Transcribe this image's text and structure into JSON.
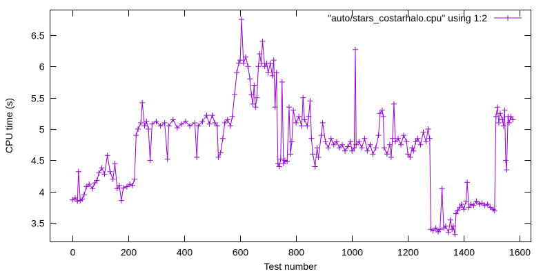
{
  "chart_data": {
    "type": "line",
    "title": "",
    "xlabel": "Test number",
    "ylabel": "CPU time (s)",
    "xlim": [
      -80,
      1640
    ],
    "ylim": [
      3.2,
      6.9
    ],
    "xticks": [
      0,
      200,
      400,
      600,
      800,
      1000,
      1200,
      1400,
      1600
    ],
    "yticks": [
      3.5,
      4,
      4.5,
      5,
      5.5,
      6,
      6.5
    ],
    "ytick_labels": [
      "3.5",
      "4",
      "4.5",
      "5",
      "5.5",
      "6",
      "6.5"
    ],
    "grid": false,
    "legend": "top-right",
    "marker": "plus",
    "series": [
      {
        "name": "\"auto/stars_costarhalo.cpu\" using 1:2",
        "color": "#9400d3",
        "points": [
          [
            0,
            3.87
          ],
          [
            10,
            3.9
          ],
          [
            18,
            3.85
          ],
          [
            22,
            4.32
          ],
          [
            28,
            3.86
          ],
          [
            35,
            3.88
          ],
          [
            42,
            3.95
          ],
          [
            50,
            4.08
          ],
          [
            60,
            4.12
          ],
          [
            72,
            4.05
          ],
          [
            80,
            4.14
          ],
          [
            88,
            4.18
          ],
          [
            95,
            4.3
          ],
          [
            105,
            4.38
          ],
          [
            115,
            4.28
          ],
          [
            125,
            4.58
          ],
          [
            135,
            4.32
          ],
          [
            145,
            4.2
          ],
          [
            152,
            4.45
          ],
          [
            160,
            4.05
          ],
          [
            168,
            4.1
          ],
          [
            175,
            3.86
          ],
          [
            182,
            4.06
          ],
          [
            195,
            4.08
          ],
          [
            205,
            4.12
          ],
          [
            215,
            4.1
          ],
          [
            222,
            4.2
          ],
          [
            228,
            4.9
          ],
          [
            235,
            5.0
          ],
          [
            245,
            5.1
          ],
          [
            250,
            5.42
          ],
          [
            258,
            5.05
          ],
          [
            265,
            5.12
          ],
          [
            272,
            5.0
          ],
          [
            278,
            4.5
          ],
          [
            285,
            5.08
          ],
          [
            300,
            5.12
          ],
          [
            315,
            5.05
          ],
          [
            330,
            5.1
          ],
          [
            340,
            4.52
          ],
          [
            345,
            5.05
          ],
          [
            360,
            5.15
          ],
          [
            375,
            5.02
          ],
          [
            390,
            5.08
          ],
          [
            405,
            5.12
          ],
          [
            420,
            5.05
          ],
          [
            438,
            5.1
          ],
          [
            445,
            4.55
          ],
          [
            450,
            5.05
          ],
          [
            465,
            5.12
          ],
          [
            480,
            5.22
          ],
          [
            490,
            5.08
          ],
          [
            500,
            5.22
          ],
          [
            510,
            5.1
          ],
          [
            518,
            5.05
          ],
          [
            522,
            4.55
          ],
          [
            530,
            4.62
          ],
          [
            538,
            4.85
          ],
          [
            545,
            5.1
          ],
          [
            555,
            5.15
          ],
          [
            565,
            5.05
          ],
          [
            572,
            5.2
          ],
          [
            580,
            5.55
          ],
          [
            588,
            5.9
          ],
          [
            595,
            6.05
          ],
          [
            600,
            6.1
          ],
          [
            605,
            6.75
          ],
          [
            612,
            6.05
          ],
          [
            620,
            6.15
          ],
          [
            628,
            6.0
          ],
          [
            635,
            5.8
          ],
          [
            640,
            5.55
          ],
          [
            645,
            5.4
          ],
          [
            650,
            5.7
          ],
          [
            655,
            5.35
          ],
          [
            660,
            5.5
          ],
          [
            665,
            6.0
          ],
          [
            670,
            6.2
          ],
          [
            675,
            6.05
          ],
          [
            680,
            6.4
          ],
          [
            688,
            6.0
          ],
          [
            695,
            6.05
          ],
          [
            700,
            5.9
          ],
          [
            708,
            6.05
          ],
          [
            715,
            5.85
          ],
          [
            720,
            6.1
          ],
          [
            725,
            5.35
          ],
          [
            730,
            5.9
          ],
          [
            735,
            4.45
          ],
          [
            740,
            4.4
          ],
          [
            745,
            4.52
          ],
          [
            750,
            5.75
          ],
          [
            755,
            4.45
          ],
          [
            760,
            4.5
          ],
          [
            768,
            4.48
          ],
          [
            775,
            5.35
          ],
          [
            780,
            4.6
          ],
          [
            785,
            4.8
          ],
          [
            790,
            5.3
          ],
          [
            800,
            5.1
          ],
          [
            810,
            5.2
          ],
          [
            820,
            5.05
          ],
          [
            825,
            5.5
          ],
          [
            830,
            5.15
          ],
          [
            840,
            5.05
          ],
          [
            845,
            5.2
          ],
          [
            850,
            5.45
          ],
          [
            855,
            4.85
          ],
          [
            860,
            4.6
          ],
          [
            868,
            4.4
          ],
          [
            875,
            4.7
          ],
          [
            880,
            4.55
          ],
          [
            890,
            4.9
          ],
          [
            895,
            5.1
          ],
          [
            905,
            4.8
          ],
          [
            915,
            4.7
          ],
          [
            925,
            4.85
          ],
          [
            935,
            4.75
          ],
          [
            945,
            4.8
          ],
          [
            955,
            4.7
          ],
          [
            965,
            4.75
          ],
          [
            975,
            4.65
          ],
          [
            985,
            4.72
          ],
          [
            995,
            4.8
          ],
          [
            1000,
            4.65
          ],
          [
            1008,
            4.7
          ],
          [
            1012,
            6.27
          ],
          [
            1015,
            4.75
          ],
          [
            1025,
            4.8
          ],
          [
            1035,
            4.7
          ],
          [
            1045,
            4.85
          ],
          [
            1055,
            4.65
          ],
          [
            1065,
            4.75
          ],
          [
            1075,
            4.6
          ],
          [
            1085,
            4.7
          ],
          [
            1095,
            4.9
          ],
          [
            1100,
            5.25
          ],
          [
            1108,
            5.3
          ],
          [
            1112,
            5.2
          ],
          [
            1115,
            4.7
          ],
          [
            1125,
            4.6
          ],
          [
            1135,
            4.75
          ],
          [
            1140,
            4.55
          ],
          [
            1145,
            4.85
          ],
          [
            1150,
            5.4
          ],
          [
            1155,
            4.8
          ],
          [
            1165,
            4.85
          ],
          [
            1175,
            4.75
          ],
          [
            1185,
            4.9
          ],
          [
            1195,
            4.8
          ],
          [
            1200,
            4.6
          ],
          [
            1208,
            4.55
          ],
          [
            1215,
            4.7
          ],
          [
            1220,
            4.65
          ],
          [
            1228,
            4.8
          ],
          [
            1235,
            4.85
          ],
          [
            1245,
            4.75
          ],
          [
            1255,
            4.95
          ],
          [
            1265,
            4.8
          ],
          [
            1272,
            5.0
          ],
          [
            1278,
            4.85
          ],
          [
            1282,
            3.4
          ],
          [
            1290,
            3.38
          ],
          [
            1300,
            3.42
          ],
          [
            1308,
            3.36
          ],
          [
            1315,
            3.4
          ],
          [
            1322,
            4.05
          ],
          [
            1328,
            3.42
          ],
          [
            1335,
            3.45
          ],
          [
            1345,
            3.35
          ],
          [
            1352,
            3.55
          ],
          [
            1358,
            3.4
          ],
          [
            1362,
            3.45
          ],
          [
            1368,
            3.32
          ],
          [
            1372,
            3.65
          ],
          [
            1378,
            3.7
          ],
          [
            1385,
            3.75
          ],
          [
            1392,
            3.8
          ],
          [
            1400,
            3.72
          ],
          [
            1408,
            3.85
          ],
          [
            1412,
            4.15
          ],
          [
            1418,
            3.75
          ],
          [
            1425,
            3.8
          ],
          [
            1435,
            3.78
          ],
          [
            1445,
            3.85
          ],
          [
            1455,
            3.8
          ],
          [
            1465,
            3.82
          ],
          [
            1475,
            3.78
          ],
          [
            1485,
            3.8
          ],
          [
            1495,
            3.75
          ],
          [
            1505,
            3.72
          ],
          [
            1510,
            3.7
          ],
          [
            1515,
            5.2
          ],
          [
            1520,
            5.35
          ],
          [
            1525,
            5.1
          ],
          [
            1530,
            5.25
          ],
          [
            1538,
            5.15
          ],
          [
            1542,
            5.05
          ],
          [
            1546,
            5.3
          ],
          [
            1550,
            4.5
          ],
          [
            1553,
            4.35
          ],
          [
            1558,
            5.2
          ],
          [
            1562,
            5.1
          ],
          [
            1568,
            5.2
          ],
          [
            1575,
            5.15
          ]
        ]
      }
    ]
  }
}
